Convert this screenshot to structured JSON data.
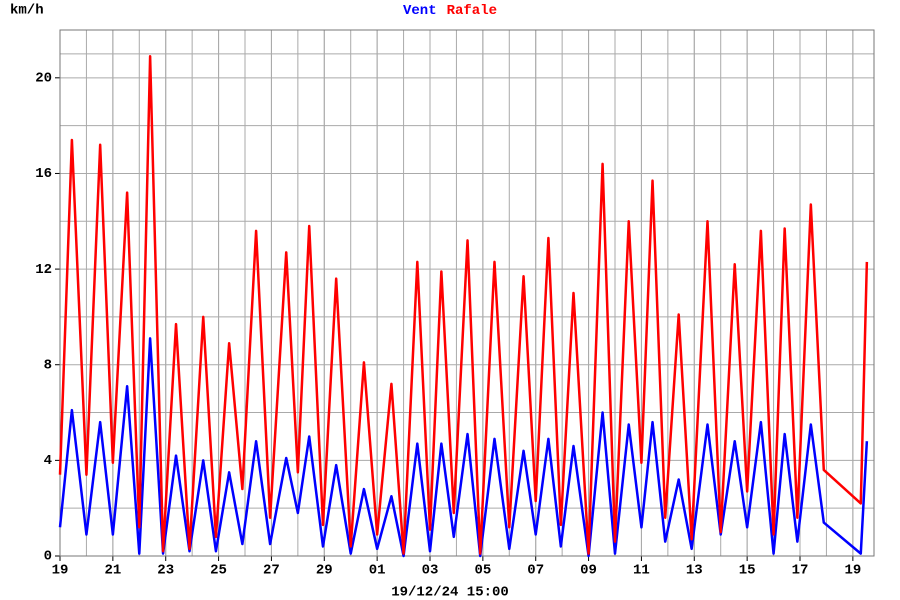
{
  "chart_data": {
    "type": "line",
    "y_label": "km/h",
    "x_label": "19/12/24 15:00",
    "x": [
      0,
      0.45,
      1.0,
      1.52,
      2.0,
      2.54,
      3.0,
      3.41,
      3.9,
      4.39,
      4.9,
      5.42,
      5.9,
      6.4,
      6.9,
      7.42,
      7.95,
      8.56,
      9.0,
      9.43,
      9.95,
      10.45,
      11.0,
      11.5,
      12.0,
      12.54,
      13.0,
      13.52,
      14.0,
      14.43,
      14.9,
      15.42,
      15.9,
      16.44,
      17.0,
      17.54,
      18.0,
      18.48,
      18.95,
      19.43,
      20.0,
      20.53,
      21.0,
      21.52,
      22.0,
      22.42,
      22.9,
      23.41,
      23.9,
      24.5,
      25.0,
      25.53,
      26.0,
      26.52,
      27.0,
      27.42,
      27.9,
      28.41,
      28.9,
      30.3,
      30.53
    ],
    "series": [
      {
        "name": "Vent",
        "color": "#0000ff",
        "values": [
          1.2,
          6.1,
          0.9,
          5.6,
          0.9,
          7.1,
          0.1,
          9.1,
          0.1,
          4.2,
          0.2,
          4.0,
          0.2,
          3.5,
          0.5,
          4.8,
          0.5,
          4.1,
          1.8,
          5.0,
          0.4,
          3.8,
          0.1,
          2.8,
          0.3,
          2.5,
          0.0,
          4.7,
          0.2,
          4.7,
          0.8,
          5.1,
          0.0,
          4.9,
          0.3,
          4.4,
          0.9,
          4.9,
          0.4,
          4.6,
          0.0,
          6.0,
          0.1,
          5.5,
          1.2,
          5.6,
          0.6,
          3.2,
          0.3,
          5.5,
          0.9,
          4.8,
          1.2,
          5.6,
          0.1,
          5.1,
          0.6,
          5.5,
          1.4,
          0.1,
          4.8
        ]
      },
      {
        "name": "Rafale",
        "color": "#ff0000",
        "values": [
          3.4,
          17.4,
          3.4,
          17.2,
          3.9,
          15.2,
          1.2,
          20.9,
          0.2,
          9.7,
          0.3,
          10.0,
          0.8,
          8.9,
          2.8,
          13.6,
          1.6,
          12.7,
          3.5,
          13.8,
          1.3,
          11.6,
          0.4,
          8.1,
          0.9,
          7.2,
          0.1,
          12.3,
          1.1,
          11.9,
          1.8,
          13.2,
          0.1,
          12.3,
          1.2,
          11.7,
          2.3,
          13.3,
          1.3,
          11.0,
          0.1,
          16.4,
          0.6,
          14.0,
          3.9,
          15.7,
          1.6,
          10.1,
          0.7,
          14.0,
          1.0,
          12.2,
          2.7,
          13.6,
          0.9,
          13.7,
          1.6,
          14.7,
          3.6,
          2.2,
          12.3
        ]
      }
    ],
    "xlim": [
      0,
      30.8
    ],
    "xticks": [
      {
        "value": 0,
        "label": "19"
      },
      {
        "value": 2,
        "label": "21"
      },
      {
        "value": 4,
        "label": "23"
      },
      {
        "value": 6,
        "label": "25"
      },
      {
        "value": 8,
        "label": "27"
      },
      {
        "value": 10,
        "label": "29"
      },
      {
        "value": 12,
        "label": "01"
      },
      {
        "value": 14,
        "label": "03"
      },
      {
        "value": 16,
        "label": "05"
      },
      {
        "value": 18,
        "label": "07"
      },
      {
        "value": 20,
        "label": "09"
      },
      {
        "value": 22,
        "label": "11"
      },
      {
        "value": 24,
        "label": "13"
      },
      {
        "value": 26,
        "label": "15"
      },
      {
        "value": 28,
        "label": "17"
      },
      {
        "value": 30,
        "label": "19"
      }
    ],
    "ylim": [
      0,
      22
    ],
    "yticks": [
      0,
      4,
      8,
      12,
      16,
      20
    ],
    "grid": true
  }
}
